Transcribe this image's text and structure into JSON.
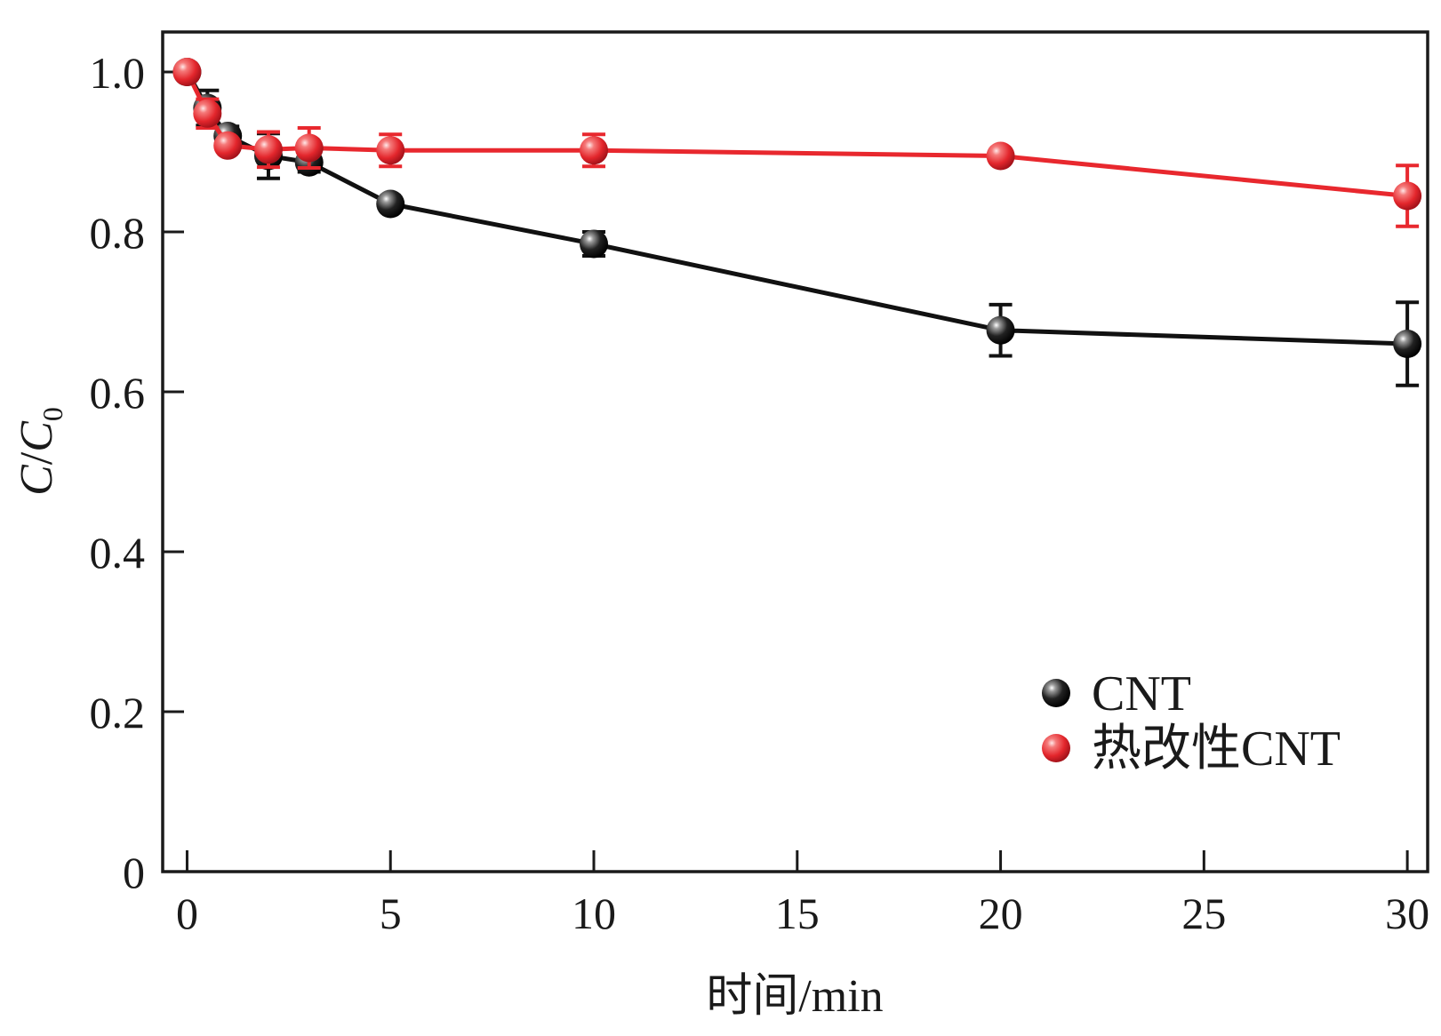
{
  "chart_data": {
    "type": "line",
    "title": "",
    "xlabel": "时间/min",
    "ylabel_main": "C",
    "ylabel_slash": "/",
    "ylabel_denom": "C",
    "ylabel_sub": "0",
    "xlim": [
      -0.6,
      30.5
    ],
    "ylim": [
      0,
      1.05
    ],
    "xticks": [
      0,
      5,
      10,
      15,
      20,
      25,
      30
    ],
    "xtick_labels": [
      "0",
      "5",
      "10",
      "15",
      "20",
      "25",
      "30"
    ],
    "yticks": [
      0,
      0.2,
      0.4,
      0.6,
      0.8,
      1.0
    ],
    "ytick_labels": [
      "0",
      "0.2",
      "0.4",
      "0.6",
      "0.8",
      "1.0"
    ],
    "legend_position": "bottom-right",
    "series": [
      {
        "name": "CNT",
        "color": "#111111",
        "x": [
          0,
          0.5,
          1,
          2,
          3,
          5,
          10,
          20,
          30
        ],
        "y": [
          1.0,
          0.955,
          0.92,
          0.895,
          0.887,
          0.835,
          0.785,
          0.677,
          0.66
        ],
        "err": [
          0,
          0.022,
          0.012,
          0.028,
          0.012,
          0.008,
          0.015,
          0.032,
          0.052
        ]
      },
      {
        "name": "热改性CNT",
        "color": "#e8282e",
        "x": [
          0,
          0.5,
          1,
          2,
          3,
          5,
          10,
          20,
          30
        ],
        "y": [
          1.0,
          0.948,
          0.908,
          0.903,
          0.905,
          0.902,
          0.902,
          0.895,
          0.845
        ],
        "err": [
          0,
          0.018,
          0.008,
          0.022,
          0.025,
          0.02,
          0.02,
          0.008,
          0.038
        ]
      }
    ]
  }
}
